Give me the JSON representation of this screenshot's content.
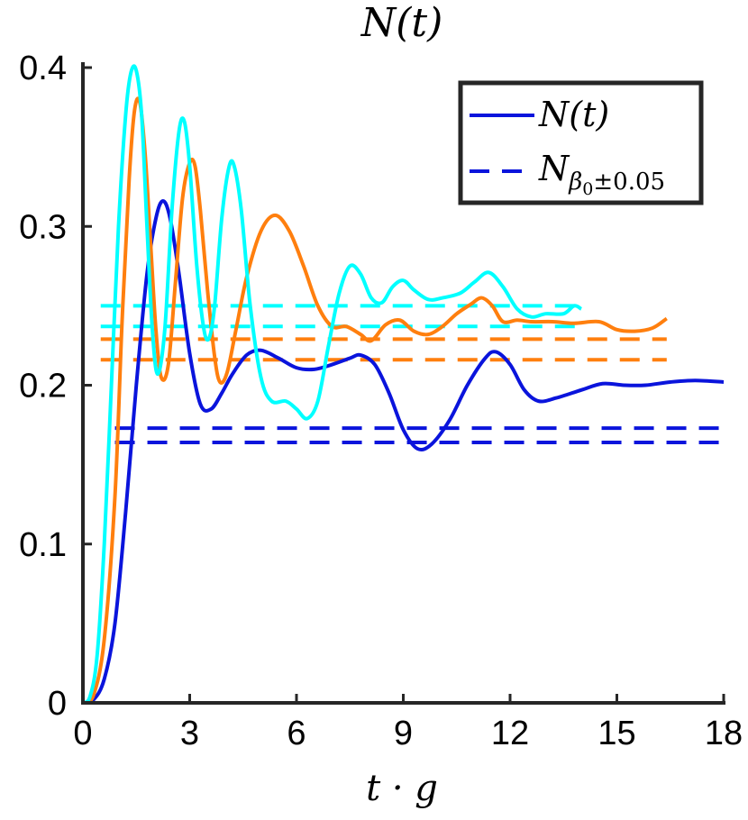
{
  "chart_data": {
    "type": "line",
    "title": "N(t)",
    "xlabel": "t · g",
    "ylabel": "",
    "xlim": [
      0,
      18
    ],
    "ylim": [
      0,
      0.4
    ],
    "xticks": [
      0,
      3,
      6,
      9,
      12,
      15,
      18
    ],
    "yticks": [
      0,
      0.1,
      0.2,
      0.3,
      0.4
    ],
    "xtick_labels": [
      "0",
      "3",
      "6",
      "9",
      "12",
      "15",
      "18"
    ],
    "ytick_labels": [
      "0",
      "0.1",
      "0.2",
      "0.3",
      "0.4"
    ],
    "grid": false,
    "legend": {
      "position": "top-right",
      "entries": [
        {
          "label_main": "N(t)",
          "style": "solid",
          "color": "#0a14dc"
        },
        {
          "label_main": "N",
          "label_sub": "β",
          "label_subsub": "0",
          "label_sub_rest": "±0.05",
          "style": "dashed",
          "color": "#0a14dc"
        }
      ]
    },
    "series": [
      {
        "color": "#0a14dc",
        "style": "solid",
        "points": [
          [
            0,
            0
          ],
          [
            0.3,
            0.002
          ],
          [
            0.6,
            0.015
          ],
          [
            0.9,
            0.05
          ],
          [
            1.2,
            0.12
          ],
          [
            1.5,
            0.2
          ],
          [
            1.8,
            0.27
          ],
          [
            2.05,
            0.305
          ],
          [
            2.25,
            0.316
          ],
          [
            2.45,
            0.305
          ],
          [
            2.7,
            0.27
          ],
          [
            3.0,
            0.22
          ],
          [
            3.3,
            0.188
          ],
          [
            3.6,
            0.185
          ],
          [
            3.9,
            0.195
          ],
          [
            4.2,
            0.207
          ],
          [
            4.6,
            0.219
          ],
          [
            5.0,
            0.222
          ],
          [
            5.5,
            0.217
          ],
          [
            6.0,
            0.211
          ],
          [
            6.5,
            0.21
          ],
          [
            7.0,
            0.213
          ],
          [
            7.5,
            0.217
          ],
          [
            7.8,
            0.219
          ],
          [
            8.2,
            0.213
          ],
          [
            8.6,
            0.195
          ],
          [
            9.0,
            0.172
          ],
          [
            9.4,
            0.16
          ],
          [
            9.8,
            0.163
          ],
          [
            10.3,
            0.178
          ],
          [
            10.8,
            0.2
          ],
          [
            11.3,
            0.217
          ],
          [
            11.6,
            0.221
          ],
          [
            12.0,
            0.213
          ],
          [
            12.4,
            0.197
          ],
          [
            12.8,
            0.19
          ],
          [
            13.3,
            0.192
          ],
          [
            14.0,
            0.197
          ],
          [
            14.6,
            0.201
          ],
          [
            15.2,
            0.2
          ],
          [
            15.8,
            0.2
          ],
          [
            16.5,
            0.202
          ],
          [
            17.2,
            0.203
          ],
          [
            18.0,
            0.202
          ]
        ]
      },
      {
        "color": "#ff7f0e",
        "style": "solid",
        "points": [
          [
            0,
            0
          ],
          [
            0.3,
            0.005
          ],
          [
            0.6,
            0.04
          ],
          [
            0.9,
            0.13
          ],
          [
            1.1,
            0.24
          ],
          [
            1.3,
            0.33
          ],
          [
            1.45,
            0.373
          ],
          [
            1.6,
            0.378
          ],
          [
            1.75,
            0.345
          ],
          [
            1.9,
            0.29
          ],
          [
            2.05,
            0.235
          ],
          [
            2.2,
            0.205
          ],
          [
            2.4,
            0.213
          ],
          [
            2.6,
            0.265
          ],
          [
            2.8,
            0.318
          ],
          [
            3.0,
            0.34
          ],
          [
            3.15,
            0.338
          ],
          [
            3.3,
            0.31
          ],
          [
            3.5,
            0.26
          ],
          [
            3.7,
            0.218
          ],
          [
            3.85,
            0.202
          ],
          [
            4.05,
            0.208
          ],
          [
            4.3,
            0.235
          ],
          [
            4.6,
            0.268
          ],
          [
            5.0,
            0.297
          ],
          [
            5.4,
            0.307
          ],
          [
            5.8,
            0.297
          ],
          [
            6.2,
            0.275
          ],
          [
            6.6,
            0.25
          ],
          [
            7.0,
            0.237
          ],
          [
            7.4,
            0.237
          ],
          [
            7.8,
            0.232
          ],
          [
            8.1,
            0.228
          ],
          [
            8.5,
            0.238
          ],
          [
            8.9,
            0.241
          ],
          [
            9.3,
            0.234
          ],
          [
            9.7,
            0.232
          ],
          [
            10.1,
            0.237
          ],
          [
            10.5,
            0.245
          ],
          [
            10.9,
            0.251
          ],
          [
            11.2,
            0.255
          ],
          [
            11.5,
            0.25
          ],
          [
            11.8,
            0.24
          ],
          [
            12.2,
            0.241
          ],
          [
            12.6,
            0.24
          ],
          [
            13.2,
            0.24
          ],
          [
            13.8,
            0.239
          ],
          [
            14.5,
            0.24
          ],
          [
            15.0,
            0.235
          ],
          [
            15.5,
            0.234
          ],
          [
            16.0,
            0.236
          ],
          [
            16.4,
            0.242
          ]
        ]
      },
      {
        "color": "#00ffff",
        "style": "solid",
        "points": [
          [
            0,
            0
          ],
          [
            0.2,
            0.004
          ],
          [
            0.4,
            0.03
          ],
          [
            0.6,
            0.1
          ],
          [
            0.8,
            0.2
          ],
          [
            1.0,
            0.3
          ],
          [
            1.2,
            0.37
          ],
          [
            1.35,
            0.397
          ],
          [
            1.5,
            0.398
          ],
          [
            1.65,
            0.37
          ],
          [
            1.8,
            0.3
          ],
          [
            1.95,
            0.235
          ],
          [
            2.1,
            0.207
          ],
          [
            2.3,
            0.235
          ],
          [
            2.5,
            0.31
          ],
          [
            2.7,
            0.36
          ],
          [
            2.85,
            0.366
          ],
          [
            3.0,
            0.338
          ],
          [
            3.2,
            0.275
          ],
          [
            3.4,
            0.235
          ],
          [
            3.55,
            0.23
          ],
          [
            3.7,
            0.25
          ],
          [
            3.9,
            0.305
          ],
          [
            4.1,
            0.337
          ],
          [
            4.25,
            0.338
          ],
          [
            4.45,
            0.31
          ],
          [
            4.7,
            0.25
          ],
          [
            5.0,
            0.205
          ],
          [
            5.3,
            0.19
          ],
          [
            5.7,
            0.19
          ],
          [
            6.0,
            0.185
          ],
          [
            6.3,
            0.179
          ],
          [
            6.6,
            0.19
          ],
          [
            6.9,
            0.225
          ],
          [
            7.2,
            0.258
          ],
          [
            7.5,
            0.275
          ],
          [
            7.8,
            0.27
          ],
          [
            8.1,
            0.255
          ],
          [
            8.4,
            0.252
          ],
          [
            8.7,
            0.262
          ],
          [
            9.0,
            0.266
          ],
          [
            9.3,
            0.26
          ],
          [
            9.7,
            0.254
          ],
          [
            10.1,
            0.255
          ],
          [
            10.6,
            0.258
          ],
          [
            11.0,
            0.265
          ],
          [
            11.4,
            0.271
          ],
          [
            11.8,
            0.262
          ],
          [
            12.2,
            0.248
          ],
          [
            12.6,
            0.243
          ],
          [
            13.0,
            0.245
          ],
          [
            13.5,
            0.245
          ],
          [
            13.8,
            0.25
          ],
          [
            14.0,
            0.248
          ]
        ]
      },
      {
        "color": "#0a14dc",
        "style": "dashed",
        "points": [
          [
            0.9,
            0.173
          ],
          [
            18.0,
            0.173
          ]
        ]
      },
      {
        "color": "#0a14dc",
        "style": "dashed",
        "points": [
          [
            0.9,
            0.164
          ],
          [
            18.0,
            0.164
          ]
        ]
      },
      {
        "color": "#ff7f0e",
        "style": "dashed",
        "points": [
          [
            0.5,
            0.229
          ],
          [
            16.4,
            0.229
          ]
        ]
      },
      {
        "color": "#ff7f0e",
        "style": "dashed",
        "points": [
          [
            0.5,
            0.216
          ],
          [
            16.4,
            0.216
          ]
        ]
      },
      {
        "color": "#00ffff",
        "style": "dashed",
        "points": [
          [
            0.5,
            0.25
          ],
          [
            14.1,
            0.25
          ]
        ]
      },
      {
        "color": "#00ffff",
        "style": "dashed",
        "points": [
          [
            0.5,
            0.237
          ],
          [
            14.1,
            0.237
          ]
        ]
      }
    ]
  }
}
